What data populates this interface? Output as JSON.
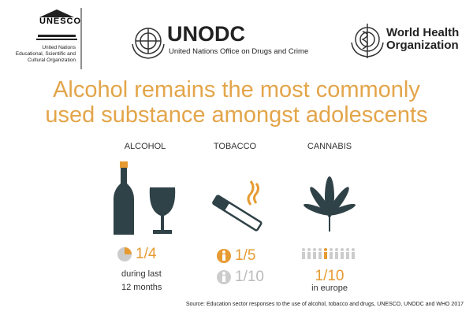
{
  "logos": {
    "unesco": {
      "mark": "UNESCO",
      "lines": [
        "United Nations",
        "Educational, Scientific and",
        "Cultural Organization"
      ]
    },
    "unodc": {
      "name": "UNODC",
      "full_name": "United Nations Office on Drugs and Crime"
    },
    "who": {
      "lines": [
        "World Health",
        "Organization"
      ]
    }
  },
  "title": {
    "lines": [
      "Alcohol remains the most commonly",
      "used substance amongst adolescents"
    ]
  },
  "substances": [
    {
      "label": "ALCOHOL",
      "stat": "1/4",
      "note_lines": [
        "during last",
        "12 months"
      ]
    },
    {
      "label": "TOBACCO",
      "stat": "1/5",
      "stat_secondary": "1/10"
    },
    {
      "label": "CANNABIS",
      "stat": "1/10",
      "note_lines": [
        "in europe"
      ]
    }
  ],
  "source": "Source: Education sector responses to the use of alcohol, tobacco and drugs, UNESCO, UNODC and WHO 2017"
}
